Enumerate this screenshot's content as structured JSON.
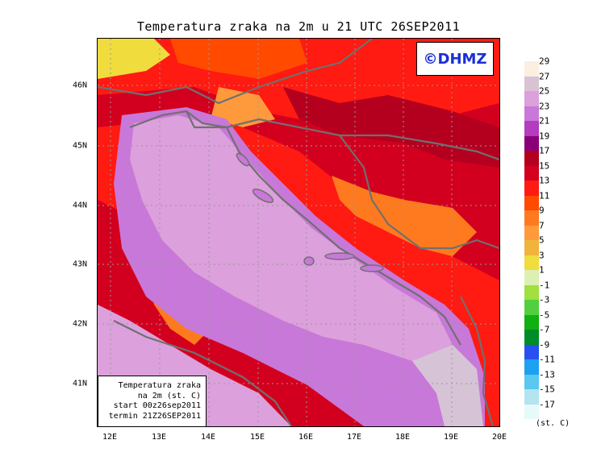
{
  "title": "Temperatura zraka na 2m u 21 UTC 26SEP2011",
  "logo_text": "©DHMZ",
  "info_box": {
    "line1": "Temperatura zraka",
    "line2": "na 2m (st. C)",
    "line3": "start 00z26sep2011",
    "line4": "termin 21Z26SEP2011"
  },
  "x_axis": {
    "labels": [
      "12E",
      "13E",
      "14E",
      "15E",
      "16E",
      "17E",
      "18E",
      "19E",
      "20E"
    ]
  },
  "y_axis": {
    "labels": [
      "46N",
      "45N",
      "44N",
      "43N",
      "42N",
      "41N"
    ]
  },
  "colorbar": {
    "units": "(st. C)",
    "labels": [
      "29",
      "27",
      "25",
      "23",
      "21",
      "19",
      "17",
      "15",
      "13",
      "11",
      "9",
      "7",
      "5",
      "3",
      "1",
      "-1",
      "-3",
      "-5",
      "-7",
      "-9",
      "-11",
      "-13",
      "-15",
      "-17"
    ],
    "colors": [
      "#fbefe0",
      "#d9c2d4",
      "#dca0dc",
      "#c878d8",
      "#b43cbf",
      "#8a0078",
      "#b4001e",
      "#d2001e",
      "#ff1a12",
      "#ff4a00",
      "#ff7a1e",
      "#ff9a3c",
      "#f0b43c",
      "#f0dc3c",
      "#dcf0b4",
      "#a0e040",
      "#50d040",
      "#10b010",
      "#008c28",
      "#2850f0",
      "#1ea0f0",
      "#5ac8f0",
      "#b4e4f0",
      "#e6fafa"
    ]
  },
  "colors": {
    "sea": "#dca0dc",
    "sea_south": "#d6c4d6",
    "coast_band": "#c878d8",
    "coast_line": "#707070",
    "warm_land": "#d2001e",
    "hot_land": "#ff1a12",
    "orange_land": "#ff7a1e",
    "dark_land": "#8a0078",
    "yellow_land": "#f0dc3c"
  }
}
